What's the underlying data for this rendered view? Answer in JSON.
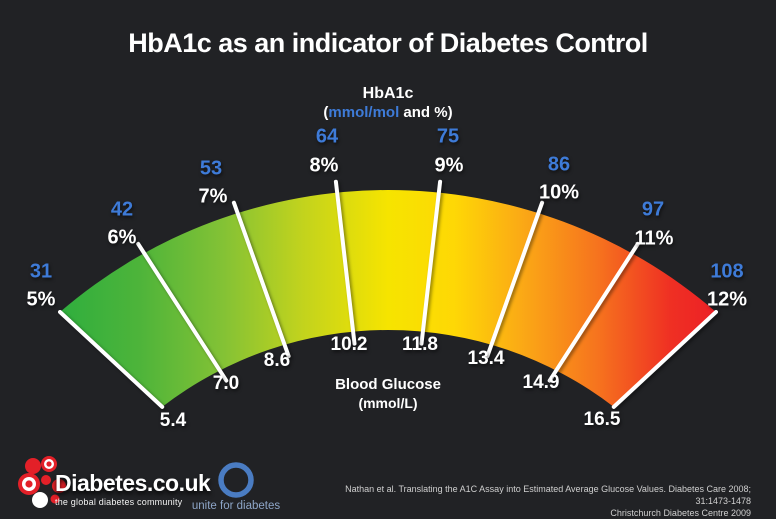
{
  "title": "HbA1c as an indicator of Diabetes Control",
  "gauge": {
    "outer_title": "HbA1c",
    "units": {
      "open": "(",
      "blue": "mmol/mol",
      "rest": " and %)"
    },
    "inner_title": "Blood Glucose",
    "inner_units": "(mmol/L)"
  },
  "chart_data": {
    "type": "gauge",
    "title": "HbA1c as an indicator of Diabetes Control",
    "outer_axis_label": "HbA1c (mmol/mol and %)",
    "inner_axis_label": "Blood Glucose (mmol/L)",
    "ticks": [
      {
        "hba1c_mmol_mol": 31,
        "hba1c_percent": "5%",
        "blood_glucose_mmol_l": "5.4"
      },
      {
        "hba1c_mmol_mol": 42,
        "hba1c_percent": "6%",
        "blood_glucose_mmol_l": "7.0"
      },
      {
        "hba1c_mmol_mol": 53,
        "hba1c_percent": "7%",
        "blood_glucose_mmol_l": "8.6"
      },
      {
        "hba1c_mmol_mol": 64,
        "hba1c_percent": "8%",
        "blood_glucose_mmol_l": "10.2"
      },
      {
        "hba1c_mmol_mol": 75,
        "hba1c_percent": "9%",
        "blood_glucose_mmol_l": "11.8"
      },
      {
        "hba1c_mmol_mol": 86,
        "hba1c_percent": "10%",
        "blood_glucose_mmol_l": "13.4"
      },
      {
        "hba1c_mmol_mol": 97,
        "hba1c_percent": "11%",
        "blood_glucose_mmol_l": "14.9"
      },
      {
        "hba1c_mmol_mol": 108,
        "hba1c_percent": "12%",
        "blood_glucose_mmol_l": "16.5"
      }
    ],
    "colors": {
      "background": "#212225",
      "tick_number_blue": "#3e7bd8",
      "tick_line": "#ffffff",
      "gradient": [
        {
          "offset": 0.0,
          "color": "#2fae3e"
        },
        {
          "offset": 0.12,
          "color": "#4db43a"
        },
        {
          "offset": 0.25,
          "color": "#84c235"
        },
        {
          "offset": 0.37,
          "color": "#c2d31d"
        },
        {
          "offset": 0.5,
          "color": "#f6e400"
        },
        {
          "offset": 0.6,
          "color": "#fed805"
        },
        {
          "offset": 0.7,
          "color": "#fbab15"
        },
        {
          "offset": 0.82,
          "color": "#f6731e"
        },
        {
          "offset": 0.93,
          "color": "#ef3023"
        },
        {
          "offset": 1.0,
          "color": "#ec2026"
        }
      ]
    }
  },
  "footer": {
    "brand": {
      "name": "Diabetes.co.uk",
      "tagline": "the global diabetes community",
      "logo_red": "#e32028"
    },
    "unite": {
      "label": "unite for diabetes",
      "ring_blue": "#4a7cc2"
    },
    "citation_line1": "Nathan et al. Translating the A1C Assay into Estimated Average Glucose Values. Diabetes Care 2008; 31:1473-1478",
    "citation_line2": "Christchurch Diabetes Centre 2009"
  }
}
